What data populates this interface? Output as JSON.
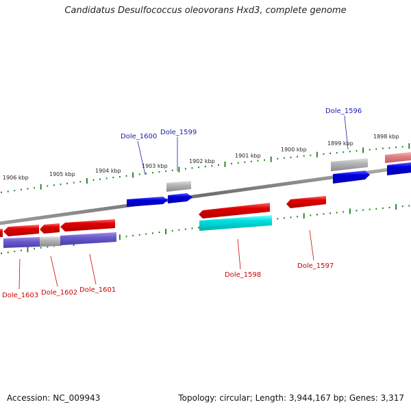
{
  "title": "Candidatus Desulfococcus oleovorans Hxd3, complete genome",
  "footer": {
    "accession": "Accession: NC_009943",
    "topology": "Topology: circular; Length: 3,944,167 bp; Genes: 3,317"
  },
  "scale_labels": [
    "1906 kbp",
    "1905 kbp",
    "1904 kbp",
    "1903 kbp",
    "1902 kbp",
    "1901 kbp",
    "1900 kbp",
    "1899 kbp",
    "1898 kbp"
  ],
  "gene_labels": {
    "dole_1596": "Dole_1596",
    "dole_1597": "Dole_1597",
    "dole_1598": "Dole_1598",
    "dole_1599": "Dole_1599",
    "dole_1600": "Dole_1600",
    "dole_1601": "Dole_1601",
    "dole_1602": "Dole_1602",
    "dole_1603": "Dole_1603"
  },
  "colors": {
    "forward_label": "#1a1aaa",
    "reverse_label": "#cc0000",
    "tick": "#1a7a1a",
    "backbone": "#808080",
    "red_gene": "#e00000",
    "blue_gene": "#0000e0",
    "gray_gene": "#b4b4b4",
    "cyan_gene": "#00e0e0",
    "purple_gene": "#6a5acd",
    "pink_gene": "#e08080"
  }
}
